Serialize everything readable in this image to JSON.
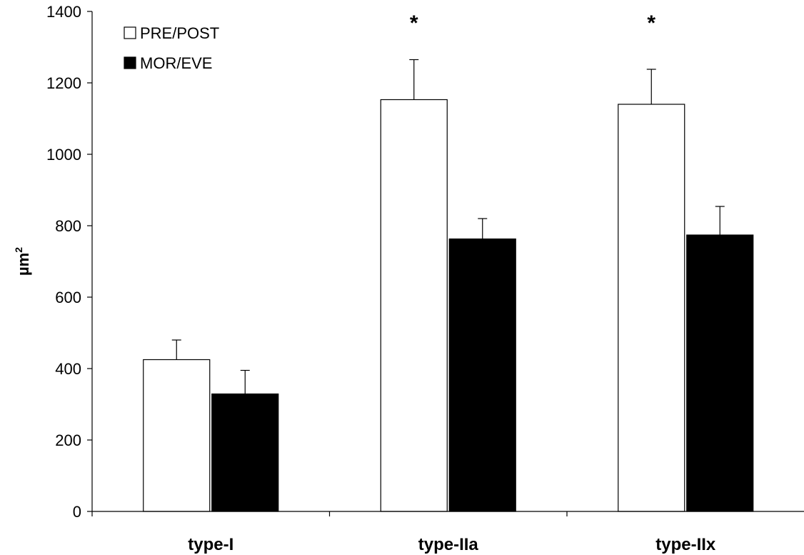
{
  "chart_data": {
    "type": "bar",
    "categories": [
      "type-I",
      "type-IIa",
      "type-IIx"
    ],
    "series": [
      {
        "name": "PRE/POST",
        "values": [
          425,
          1153,
          1140
        ],
        "errors": [
          55,
          112,
          98
        ],
        "fill": "#ffffff",
        "stroke": "#000000"
      },
      {
        "name": "MOR/EVE",
        "values": [
          329,
          763,
          774
        ],
        "errors": [
          66,
          57,
          80
        ],
        "fill": "#000000",
        "stroke": "#000000"
      }
    ],
    "ylabel": "µm",
    "ylabel_superscript": "2",
    "ylim": [
      0,
      1400
    ],
    "yticks": [
      0,
      200,
      400,
      600,
      800,
      1000,
      1200,
      1400
    ],
    "annotations": [
      {
        "category": "type-IIa",
        "text": "*"
      },
      {
        "category": "type-IIx",
        "text": "*"
      }
    ],
    "legend_placement": "top-left",
    "grid": false
  }
}
